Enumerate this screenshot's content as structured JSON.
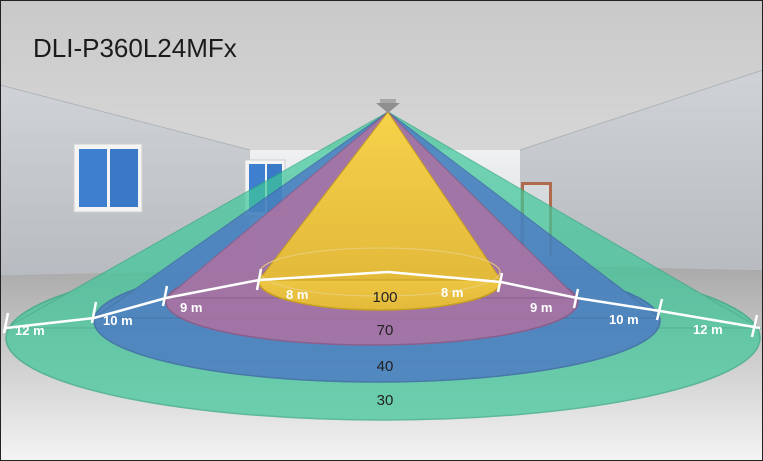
{
  "title": "DLI-P360L24MFx",
  "zones": [
    {
      "name": "outer",
      "value": "30",
      "color": "#3fc79a"
    },
    {
      "name": "third",
      "value": "40",
      "color": "#4a6fc9"
    },
    {
      "name": "second",
      "value": "70",
      "color": "#b8709e"
    },
    {
      "name": "core",
      "value": "100",
      "color": "#f0c93a"
    }
  ],
  "distance_labels": {
    "left_12": "12 m",
    "left_10": "10 m",
    "left_9": "9 m",
    "left_8": "8 m",
    "right_8": "8 m",
    "right_9": "9 m",
    "right_10": "10 m",
    "right_12": "12 m"
  }
}
